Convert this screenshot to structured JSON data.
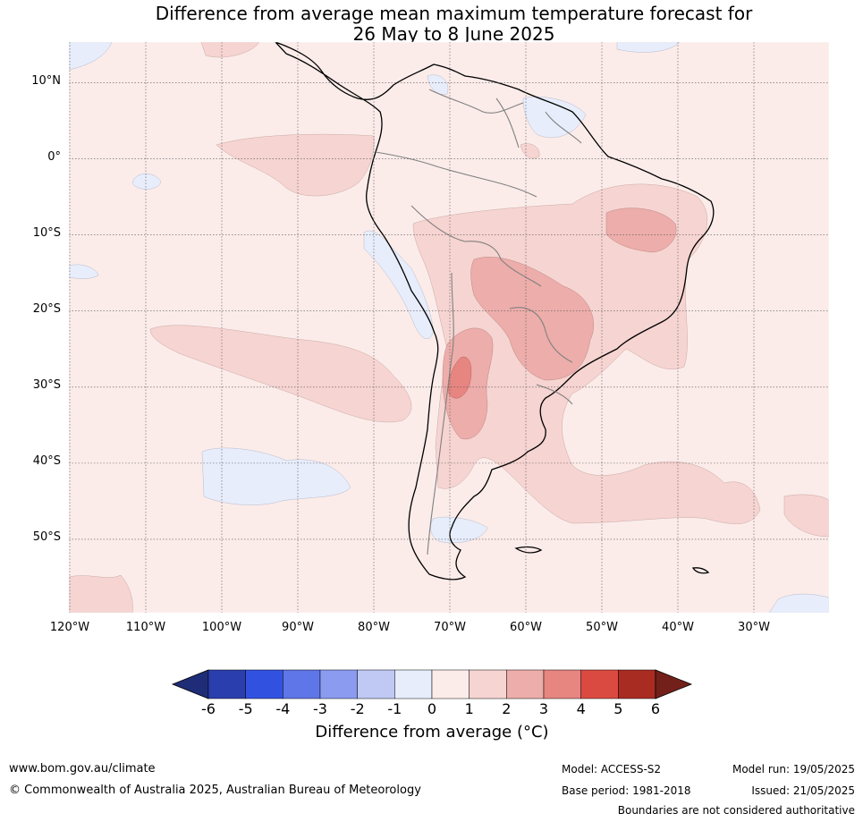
{
  "title": {
    "line1": "Difference from average mean maximum temperature forecast for",
    "line2": "26 May to 8 June 2025"
  },
  "map": {
    "lat_labels": [
      "10°N",
      "0°",
      "10°S",
      "20°S",
      "30°S",
      "40°S",
      "50°S"
    ],
    "lon_labels": [
      "120°W",
      "110°W",
      "100°W",
      "90°W",
      "80°W",
      "70°W",
      "60°W",
      "50°W",
      "40°W",
      "30°W"
    ],
    "lat_values": [
      10,
      0,
      -10,
      -20,
      -30,
      -40,
      -50
    ],
    "lon_values": [
      -120,
      -110,
      -100,
      -90,
      -80,
      -70,
      -60,
      -50,
      -40,
      -30
    ],
    "extent": {
      "lon_min": -120,
      "lon_max": -20,
      "lat_min": -60,
      "lat_max": 15
    }
  },
  "colorbar": {
    "ticks": [
      "-6",
      "-5",
      "-4",
      "-3",
      "-2",
      "-1",
      "0",
      "1",
      "2",
      "3",
      "4",
      "5",
      "6"
    ],
    "colors": [
      "#2a3fad",
      "#3152e1",
      "#5f76e8",
      "#8a9bf0",
      "#c0c8f4",
      "#e7edfb",
      "#fbecea",
      "#f6d4d1",
      "#edadaa",
      "#e78580",
      "#db4a40",
      "#a92c22"
    ],
    "low_extend_color": "#1f2d78",
    "high_extend_color": "#73201a",
    "label": "Difference from average (°C)"
  },
  "footer": {
    "website": "www.bom.gov.au/climate",
    "copyright": "© Commonwealth of Australia 2025, Australian Bureau of Meteorology",
    "model": "Model: ACCESS-S2",
    "base_period": "Base period: 1981-2018",
    "model_run": "Model run: 19/05/2025",
    "issued": "Issued: 21/05/2025",
    "disclaimer": "Boundaries are not considered authoritative"
  }
}
